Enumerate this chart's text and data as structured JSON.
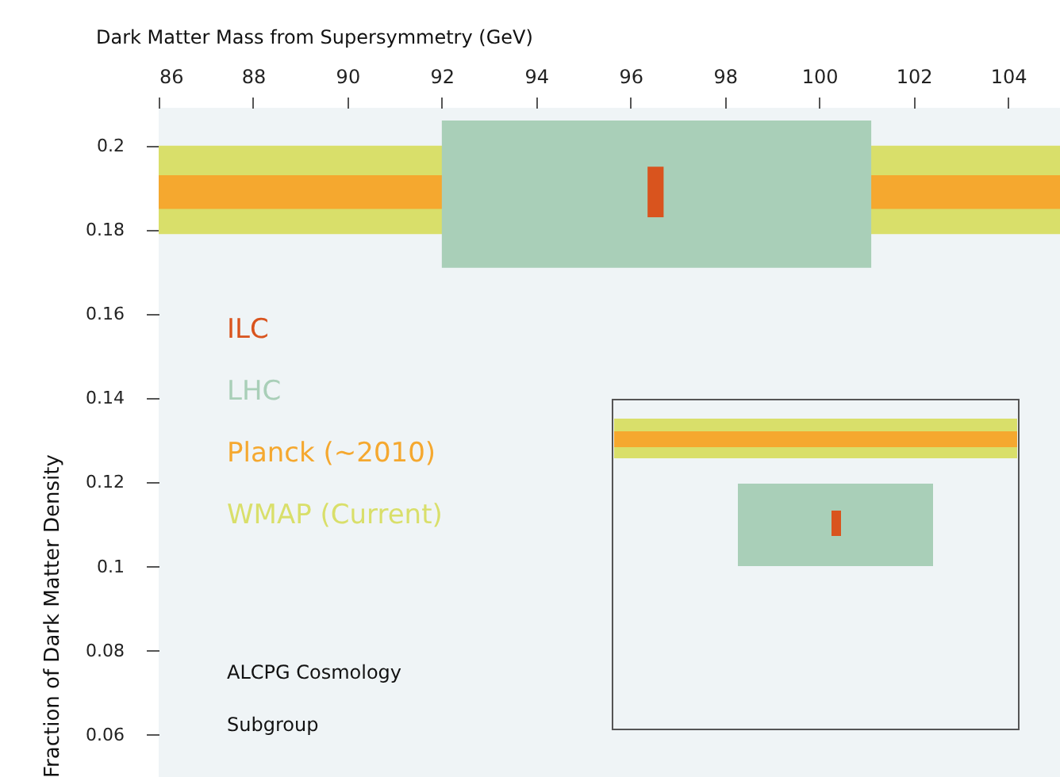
{
  "chart_data": {
    "type": "line",
    "xlabel": "Dark Matter Mass from Supersymmetry (GeV)",
    "ylabel": "Fraction of Dark Matter Density",
    "xlim": [
      86,
      105.1
    ],
    "xticks": [
      86,
      88,
      90,
      92,
      94,
      96,
      98,
      100,
      102,
      104
    ],
    "ylim": [
      0.05,
      0.209
    ],
    "yticks": [
      0.06,
      0.08,
      0.1,
      0.12,
      0.14,
      0.16,
      0.18,
      0.2
    ],
    "grid": false,
    "legend": "left",
    "series": [
      {
        "name": "LHC",
        "color": "#a9cfb8",
        "x": [
          92,
          101.1
        ],
        "values": [
          null,
          null
        ],
        "lower": [
          0.171,
          0.171
        ],
        "upper": [
          0.206,
          0.206
        ]
      },
      {
        "name": "ILC",
        "color": "#d9541e",
        "x": [
          96.36,
          96.7
        ],
        "values": [
          null,
          null
        ],
        "lower": [
          0.183,
          0.183
        ],
        "upper": [
          0.195,
          0.195
        ]
      }
    ],
    "bands": [
      {
        "axis": "y",
        "from": 0.179,
        "to": 0.2,
        "label": "WMAP (Current)",
        "color": "#d9df6a"
      },
      {
        "axis": "y",
        "from": 0.185,
        "to": 0.193,
        "label": "Planck (~2010)",
        "color": "#f5a82f"
      }
    ],
    "annotations": [
      "ALCPG Cosmology\nSubgroup"
    ]
  }
}
